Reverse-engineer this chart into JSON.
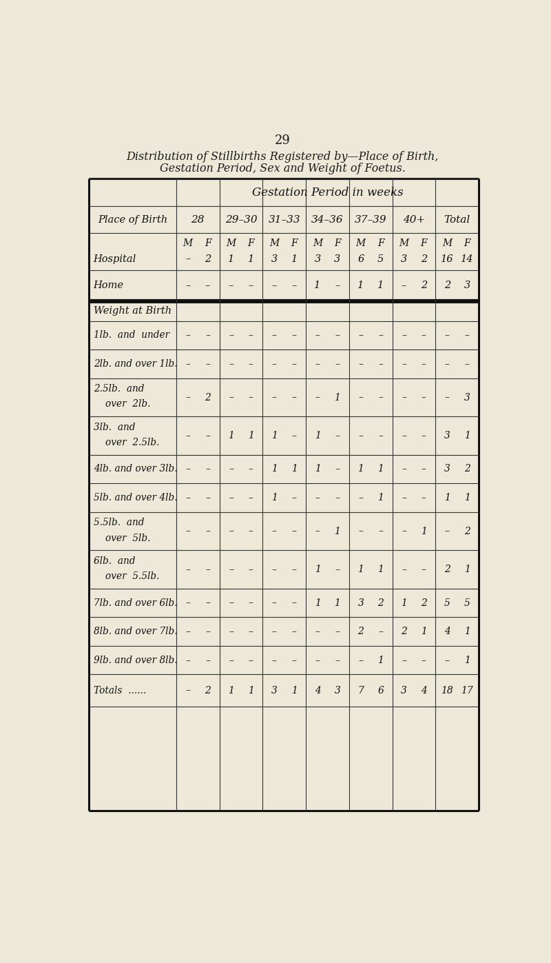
{
  "page_number": "29",
  "title_line1": "Distribution of Stillbirths Registered by—Place of Birth,",
  "title_line2": "Gestation Period, Sex and Weight of Foetus.",
  "background_color": "#ede8d8",
  "gestation_header": "Gestation Period in weeks",
  "col_headers": [
    "28",
    "29–30",
    "31–33",
    "34–36",
    "37–39",
    "40+",
    "Total"
  ],
  "row_label_header": "Place of Birth",
  "hospital_mf": [
    [
      "M",
      "F"
    ],
    [
      "M",
      "F"
    ],
    [
      "M",
      "F"
    ],
    [
      "M",
      "F"
    ],
    [
      "M",
      "F"
    ],
    [
      "M",
      "F"
    ],
    [
      "M",
      "F"
    ]
  ],
  "hospital_vals": [
    [
      "–",
      "2"
    ],
    [
      "1",
      "1"
    ],
    [
      "3",
      "1"
    ],
    [
      "3",
      "3"
    ],
    [
      "6",
      "5"
    ],
    [
      "3",
      "2"
    ],
    [
      "16",
      "14"
    ]
  ],
  "home_vals": [
    [
      "–",
      "–"
    ],
    [
      "–",
      "–"
    ],
    [
      "–",
      "–"
    ],
    [
      "1",
      "–"
    ],
    [
      "1",
      "1"
    ],
    [
      "–",
      "2"
    ],
    [
      "2",
      "3"
    ]
  ],
  "weight_rows": [
    {
      "key": "1lb_under",
      "line1": "1lb.  and  under",
      "line2": null,
      "vals": [
        [
          "–",
          "–"
        ],
        [
          "–",
          "–"
        ],
        [
          "–",
          "–"
        ],
        [
          "–",
          "–"
        ],
        [
          "–",
          "–"
        ],
        [
          "–",
          "–"
        ],
        [
          "–",
          "–"
        ]
      ]
    },
    {
      "key": "2lb_1lb",
      "line1": "2lb. and over 1lb.",
      "line2": null,
      "vals": [
        [
          "–",
          "–"
        ],
        [
          "–",
          "–"
        ],
        [
          "–",
          "–"
        ],
        [
          "–",
          "–"
        ],
        [
          "–",
          "–"
        ],
        [
          "–",
          "–"
        ],
        [
          "–",
          "–"
        ]
      ]
    },
    {
      "key": "2.5lb_2lb",
      "line1": "2.5lb.  and",
      "line2": "over  2lb.",
      "vals": [
        [
          "–",
          "2"
        ],
        [
          "–",
          "–"
        ],
        [
          "–",
          "–"
        ],
        [
          "–",
          "1"
        ],
        [
          "–",
          "–"
        ],
        [
          "–",
          "–"
        ],
        [
          "–",
          "3"
        ]
      ]
    },
    {
      "key": "3lb_2.5lb",
      "line1": "3lb.  and",
      "line2": "over  2.5lb.",
      "vals": [
        [
          "–",
          "–"
        ],
        [
          "1",
          "1"
        ],
        [
          "1",
          "–"
        ],
        [
          "1",
          "–"
        ],
        [
          "–",
          "–"
        ],
        [
          "–",
          "–"
        ],
        [
          "3",
          "1"
        ]
      ]
    },
    {
      "key": "4lb_3lb",
      "line1": "4lb. and over 3lb.",
      "line2": null,
      "vals": [
        [
          "–",
          "–"
        ],
        [
          "–",
          "–"
        ],
        [
          "1",
          "1"
        ],
        [
          "1",
          "–"
        ],
        [
          "1",
          "1"
        ],
        [
          "–",
          "–"
        ],
        [
          "3",
          "2"
        ]
      ]
    },
    {
      "key": "5lb_4lb",
      "line1": "5lb. and over 4lb.",
      "line2": null,
      "vals": [
        [
          "–",
          "–"
        ],
        [
          "–",
          "–"
        ],
        [
          "1",
          "–"
        ],
        [
          "–",
          "–"
        ],
        [
          "–",
          "1"
        ],
        [
          "–",
          "–"
        ],
        [
          "1",
          "1"
        ]
      ]
    },
    {
      "key": "5.5lb_5lb",
      "line1": "5.5lb.  and",
      "line2": "over  5lb.",
      "vals": [
        [
          "–",
          "–"
        ],
        [
          "–",
          "–"
        ],
        [
          "–",
          "–"
        ],
        [
          "–",
          "1"
        ],
        [
          "–",
          "–"
        ],
        [
          "–",
          "1"
        ],
        [
          "–",
          "2"
        ]
      ]
    },
    {
      "key": "6lb_5.5lb",
      "line1": "6lb.  and",
      "line2": "over  5.5lb.",
      "vals": [
        [
          "–",
          "–"
        ],
        [
          "–",
          "–"
        ],
        [
          "–",
          "–"
        ],
        [
          "1",
          "–"
        ],
        [
          "1",
          "1"
        ],
        [
          "–",
          "–"
        ],
        [
          "2",
          "1"
        ]
      ]
    },
    {
      "key": "7lb_6lb",
      "line1": "7lb. and over 6lb.",
      "line2": null,
      "vals": [
        [
          "–",
          "–"
        ],
        [
          "–",
          "–"
        ],
        [
          "–",
          "–"
        ],
        [
          "1",
          "1"
        ],
        [
          "3",
          "2"
        ],
        [
          "1",
          "2"
        ],
        [
          "5",
          "5"
        ]
      ]
    },
    {
      "key": "8lb_7lb",
      "line1": "8lb. and over 7lb.",
      "line2": null,
      "vals": [
        [
          "–",
          "–"
        ],
        [
          "–",
          "–"
        ],
        [
          "–",
          "–"
        ],
        [
          "–",
          "–"
        ],
        [
          "2",
          "–"
        ],
        [
          "2",
          "1"
        ],
        [
          "4",
          "1"
        ]
      ]
    },
    {
      "key": "9lb_8lb",
      "line1": "9lb. and over 8lb.",
      "line2": null,
      "vals": [
        [
          "–",
          "–"
        ],
        [
          "–",
          "–"
        ],
        [
          "–",
          "–"
        ],
        [
          "–",
          "–"
        ],
        [
          "–",
          "1"
        ],
        [
          "–",
          "–"
        ],
        [
          "–",
          "1"
        ]
      ]
    },
    {
      "key": "totals",
      "line1": "Totals  ......",
      "line2": null,
      "vals": [
        [
          "–",
          "2"
        ],
        [
          "1",
          "1"
        ],
        [
          "3",
          "1"
        ],
        [
          "4",
          "3"
        ],
        [
          "7",
          "6"
        ],
        [
          "3",
          "4"
        ],
        [
          "18",
          "17"
        ]
      ]
    }
  ]
}
